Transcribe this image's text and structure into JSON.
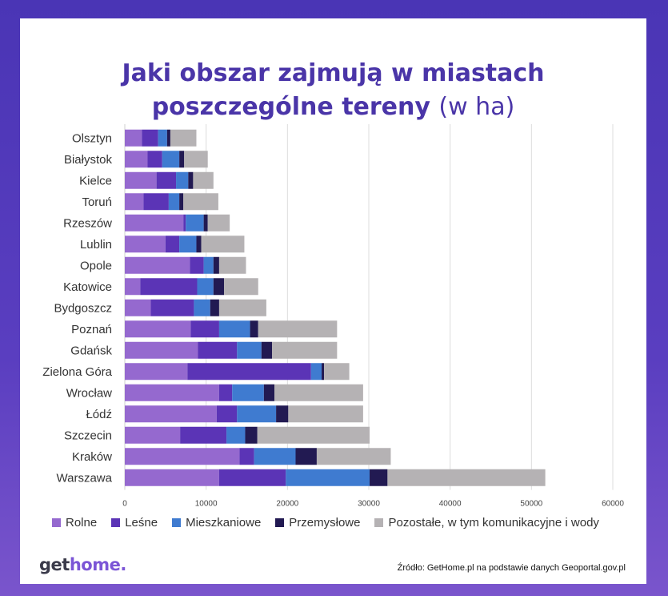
{
  "title": {
    "line1": "Jaki obszar zajmują w miastach",
    "line2_bold": "poszczególne tereny",
    "line2_light": "(w ha)"
  },
  "colors": {
    "Rolne": "#9569cf",
    "Leśne": "#5b34b6",
    "Mieszkaniowe": "#3f7bd0",
    "Przemysłowe": "#221a52",
    "Pozostałe": "#b5b2b4"
  },
  "chart_data": {
    "type": "bar",
    "orientation": "horizontal",
    "stacked": true,
    "categories": [
      "Olsztyn",
      "Białystok",
      "Kielce",
      "Toruń",
      "Rzeszów",
      "Lublin",
      "Opole",
      "Katowice",
      "Bydgoszcz",
      "Poznań",
      "Gdańsk",
      "Zielona Góra",
      "Wrocław",
      "Łódź",
      "Szczecin",
      "Kraków",
      "Warszawa"
    ],
    "series": [
      {
        "name": "Rolne",
        "values": [
          2100,
          2800,
          3900,
          2300,
          7200,
          5000,
          8000,
          1900,
          3200,
          8100,
          9000,
          7700,
          11600,
          11300,
          6800,
          14100,
          11600
        ]
      },
      {
        "name": "Leśne",
        "values": [
          2000,
          1800,
          2400,
          3100,
          300,
          1700,
          1700,
          7000,
          5300,
          3500,
          4800,
          15200,
          1600,
          2500,
          5700,
          1800,
          8200
        ]
      },
      {
        "name": "Mieszkaniowe",
        "values": [
          1100,
          2100,
          1500,
          1300,
          2200,
          2100,
          1200,
          2000,
          2000,
          3800,
          3000,
          1300,
          3900,
          4800,
          2300,
          5100,
          10300
        ]
      },
      {
        "name": "Przemysłowe",
        "values": [
          400,
          600,
          600,
          500,
          500,
          600,
          700,
          1300,
          1100,
          1000,
          1300,
          300,
          1300,
          1500,
          1500,
          2600,
          2200
        ]
      },
      {
        "name": "Pozostałe, w tym komunikacyjne i wody",
        "values": [
          3200,
          2900,
          2500,
          4300,
          2700,
          5300,
          3300,
          4200,
          5800,
          9700,
          8000,
          3100,
          10900,
          9200,
          13800,
          9100,
          19400
        ]
      }
    ],
    "x_ticks": [
      "0",
      "10000",
      "20000",
      "30000",
      "40000",
      "50000",
      "60000"
    ],
    "xlim": [
      0,
      60000
    ],
    "grid": true,
    "legend_placement": "bottom"
  },
  "legend": [
    "Rolne",
    "Leśne",
    "Mieszkaniowe",
    "Przemysłowe",
    "Pozostałe, w tym komunikacyjne i wody"
  ],
  "footer": {
    "logo_a": "get",
    "logo_b": "home.",
    "source": "Źródło: GetHome.pl na podstawie danych Geoportal.gov.pl"
  }
}
